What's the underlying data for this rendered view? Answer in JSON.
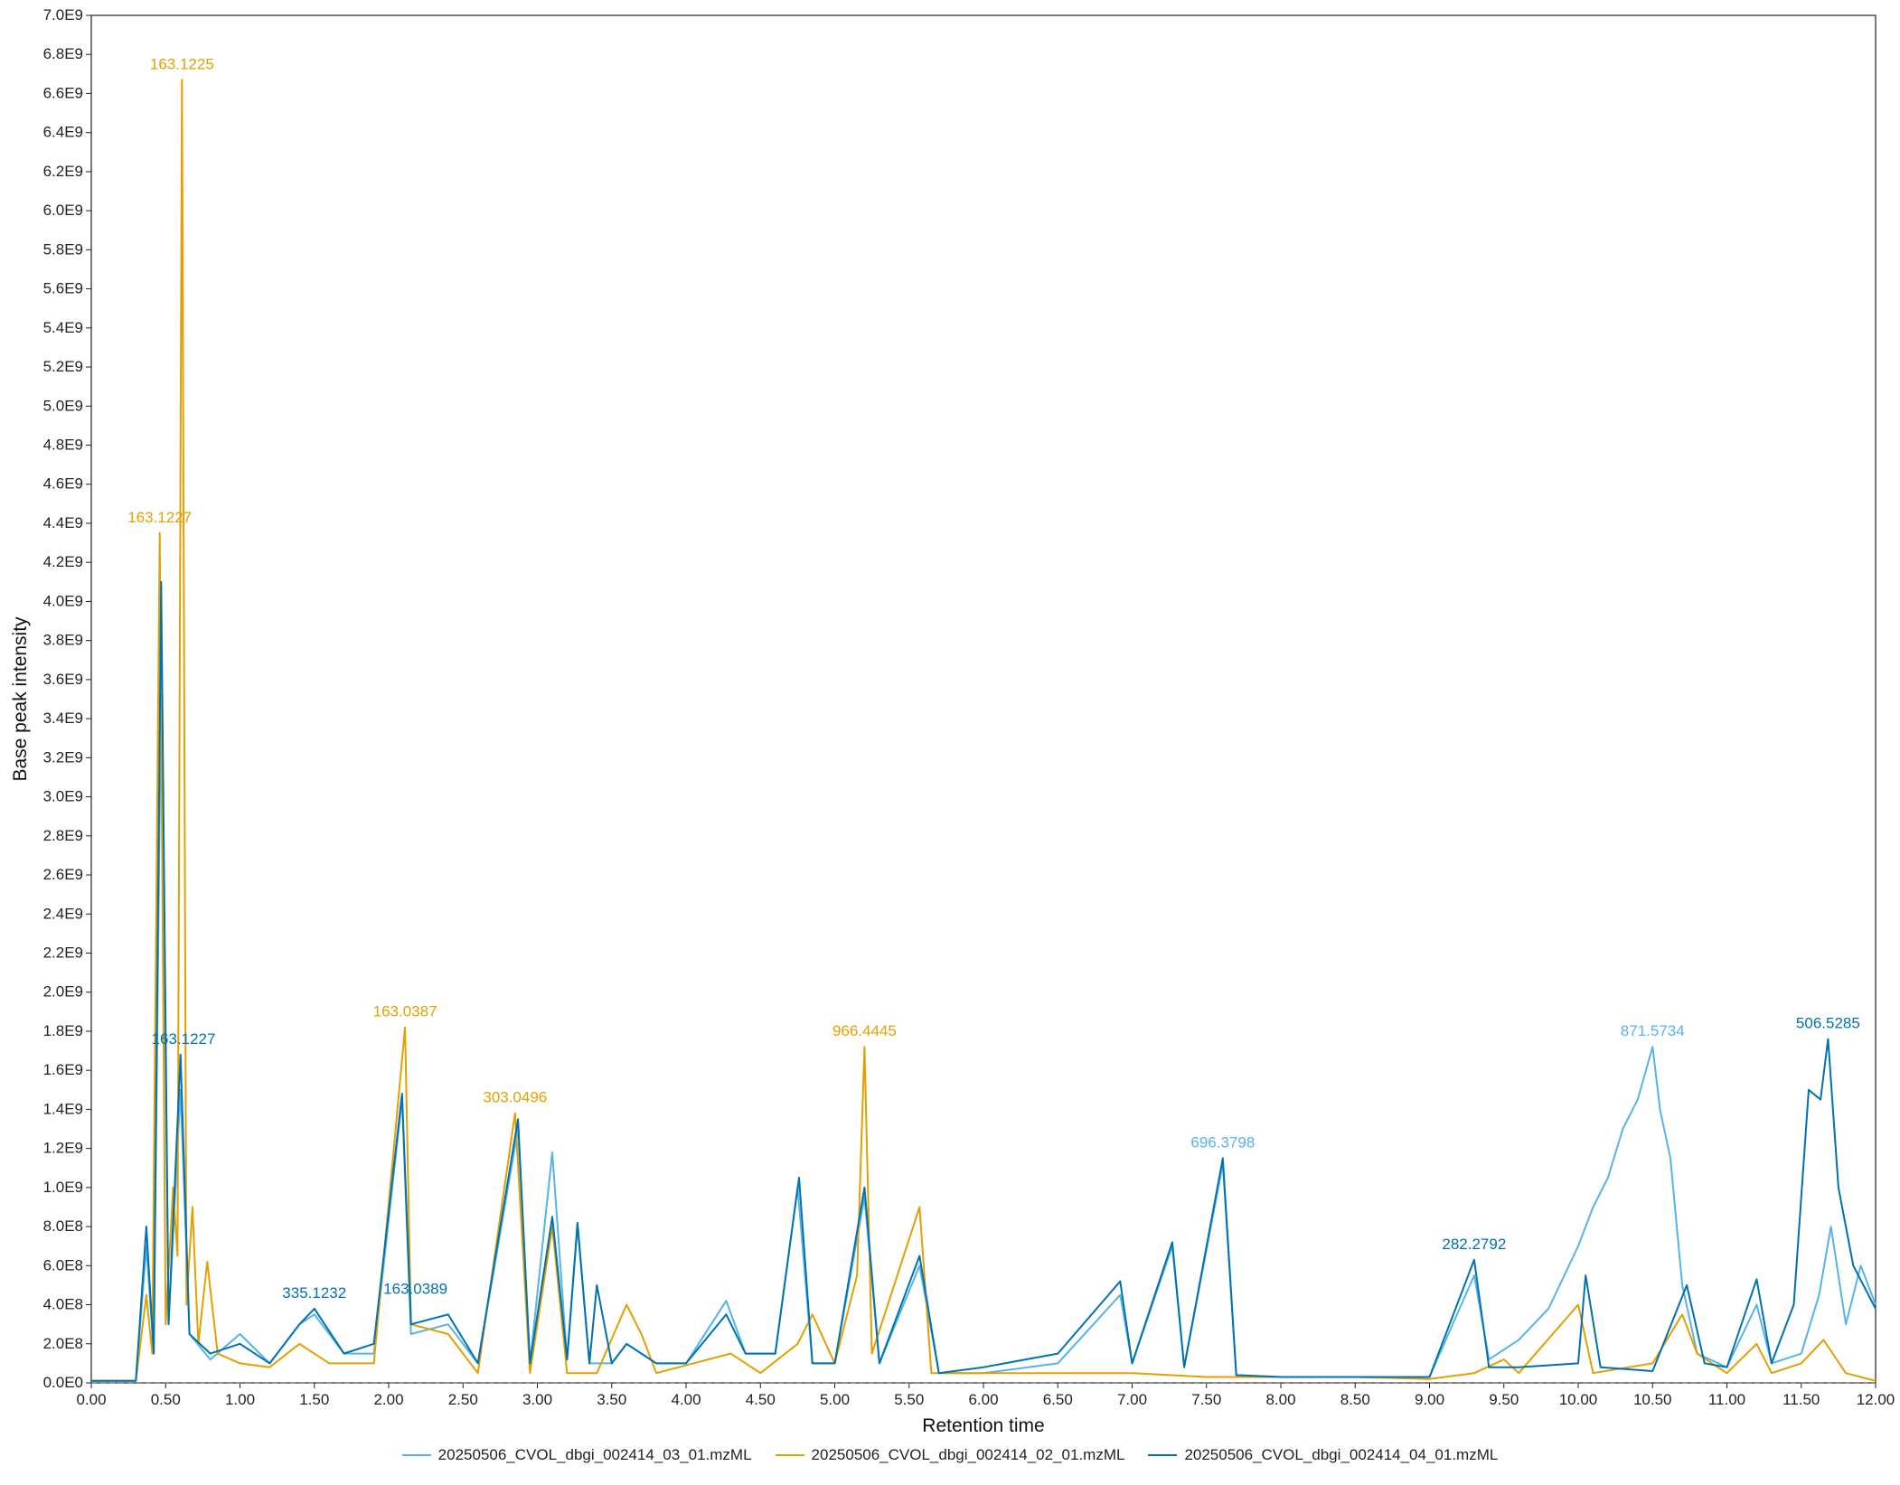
{
  "chart_data": {
    "type": "line",
    "title": "",
    "xlabel": "Retention time",
    "ylabel": "Base peak intensity",
    "xlim": [
      0,
      12
    ],
    "ylim": [
      0,
      7000000000
    ],
    "x_ticks": [
      "0.00",
      "0.50",
      "1.00",
      "1.50",
      "2.00",
      "2.50",
      "3.00",
      "3.50",
      "4.00",
      "4.50",
      "5.00",
      "5.50",
      "6.00",
      "6.50",
      "7.00",
      "7.50",
      "8.00",
      "8.50",
      "9.00",
      "9.50",
      "10.00",
      "10.50",
      "11.00",
      "11.50",
      "12.00"
    ],
    "y_ticks": [
      "0.0E0",
      "2.0E8",
      "4.0E8",
      "6.0E8",
      "8.0E8",
      "1.0E9",
      "1.2E9",
      "1.4E9",
      "1.6E9",
      "1.8E9",
      "2.0E9",
      "2.2E9",
      "2.4E9",
      "2.6E9",
      "2.8E9",
      "3.0E9",
      "3.2E9",
      "3.4E9",
      "3.6E9",
      "3.8E9",
      "4.0E9",
      "4.2E9",
      "4.4E9",
      "4.6E9",
      "4.8E9",
      "5.0E9",
      "5.2E9",
      "5.4E9",
      "5.6E9",
      "5.8E9",
      "6.0E9",
      "6.2E9",
      "6.4E9",
      "6.6E9",
      "6.8E9",
      "7.0E9"
    ],
    "grid": false,
    "legend_position": "bottom",
    "series": [
      {
        "name": "20250506_CVOL_dbgi_002414_03_01.mzML",
        "color": "#56b4e9",
        "points": [
          [
            0,
            10000000.0
          ],
          [
            0.3,
            10000000.0
          ],
          [
            0.37,
            700000000.0
          ],
          [
            0.42,
            150000000.0
          ],
          [
            0.47,
            3600000000.0
          ],
          [
            0.52,
            300000000.0
          ],
          [
            0.6,
            1500000000.0
          ],
          [
            0.66,
            250000000.0
          ],
          [
            0.8,
            120000000.0
          ],
          [
            1.0,
            250000000.0
          ],
          [
            1.2,
            100000000.0
          ],
          [
            1.4,
            300000000.0
          ],
          [
            1.5,
            350000000.0
          ],
          [
            1.7,
            150000000.0
          ],
          [
            1.9,
            150000000.0
          ],
          [
            2.09,
            1450000000.0
          ],
          [
            2.15,
            250000000.0
          ],
          [
            2.4,
            300000000.0
          ],
          [
            2.6,
            100000000.0
          ],
          [
            2.87,
            1300000000.0
          ],
          [
            2.95,
            100000000.0
          ],
          [
            3.1,
            1180000000.0
          ],
          [
            3.2,
            120000000.0
          ],
          [
            3.27,
            800000000.0
          ],
          [
            3.35,
            100000000.0
          ],
          [
            3.5,
            100000000.0
          ],
          [
            3.6,
            200000000.0
          ],
          [
            3.8,
            100000000.0
          ],
          [
            4.0,
            100000000.0
          ],
          [
            4.27,
            420000000.0
          ],
          [
            4.4,
            150000000.0
          ],
          [
            4.6,
            150000000.0
          ],
          [
            4.75,
            1000000000.0
          ],
          [
            4.85,
            100000000.0
          ],
          [
            5.0,
            100000000.0
          ],
          [
            5.2,
            950000000.0
          ],
          [
            5.3,
            100000000.0
          ],
          [
            5.57,
            600000000.0
          ],
          [
            5.7,
            50000000.0
          ],
          [
            6.0,
            50000000.0
          ],
          [
            6.5,
            100000000.0
          ],
          [
            6.92,
            450000000.0
          ],
          [
            7.0,
            100000000.0
          ],
          [
            7.27,
            700000000.0
          ],
          [
            7.35,
            80000000.0
          ],
          [
            7.61,
            1120000000.0
          ],
          [
            7.7,
            40000000.0
          ],
          [
            8.0,
            30000000.0
          ],
          [
            8.5,
            30000000.0
          ],
          [
            9.0,
            30000000.0
          ],
          [
            9.3,
            550000000.0
          ],
          [
            9.4,
            120000000.0
          ],
          [
            9.6,
            220000000.0
          ],
          [
            9.8,
            380000000.0
          ],
          [
            10.0,
            700000000.0
          ],
          [
            10.1,
            900000000.0
          ],
          [
            10.2,
            1050000000.0
          ],
          [
            10.3,
            1300000000.0
          ],
          [
            10.4,
            1450000000.0
          ],
          [
            10.5,
            1720000000.0
          ],
          [
            10.55,
            1400000000.0
          ],
          [
            10.62,
            1150000000.0
          ],
          [
            10.7,
            500000000.0
          ],
          [
            10.8,
            150000000.0
          ],
          [
            11.0,
            80000000.0
          ],
          [
            11.2,
            400000000.0
          ],
          [
            11.3,
            100000000.0
          ],
          [
            11.5,
            150000000.0
          ],
          [
            11.62,
            450000000.0
          ],
          [
            11.7,
            800000000.0
          ],
          [
            11.8,
            300000000.0
          ],
          [
            11.9,
            600000000.0
          ],
          [
            12.0,
            400000000.0
          ]
        ]
      },
      {
        "name": "20250506_CVOL_dbgi_002414_02_01.mzML",
        "color": "#e69f00",
        "points": [
          [
            0,
            10000000.0
          ],
          [
            0.3,
            10000000.0
          ],
          [
            0.37,
            450000000.0
          ],
          [
            0.41,
            150000000.0
          ],
          [
            0.46,
            4350000000.0
          ],
          [
            0.5,
            300000000.0
          ],
          [
            0.55,
            1000000000.0
          ],
          [
            0.58,
            650000000.0
          ],
          [
            0.61,
            6670000000.0
          ],
          [
            0.64,
            400000000.0
          ],
          [
            0.68,
            900000000.0
          ],
          [
            0.72,
            200000000.0
          ],
          [
            0.78,
            620000000.0
          ],
          [
            0.85,
            150000000.0
          ],
          [
            1.0,
            100000000.0
          ],
          [
            1.2,
            80000000.0
          ],
          [
            1.4,
            200000000.0
          ],
          [
            1.6,
            100000000.0
          ],
          [
            1.9,
            100000000.0
          ],
          [
            2.11,
            1820000000.0
          ],
          [
            2.15,
            300000000.0
          ],
          [
            2.4,
            250000000.0
          ],
          [
            2.6,
            50000000.0
          ],
          [
            2.85,
            1380000000.0
          ],
          [
            2.95,
            50000000.0
          ],
          [
            3.1,
            800000000.0
          ],
          [
            3.2,
            50000000.0
          ],
          [
            3.4,
            50000000.0
          ],
          [
            3.6,
            400000000.0
          ],
          [
            3.7,
            250000000.0
          ],
          [
            3.8,
            50000000.0
          ],
          [
            4.3,
            150000000.0
          ],
          [
            4.5,
            50000000.0
          ],
          [
            4.75,
            200000000.0
          ],
          [
            4.85,
            350000000.0
          ],
          [
            5.0,
            100000000.0
          ],
          [
            5.15,
            550000000.0
          ],
          [
            5.2,
            1720000000.0
          ],
          [
            5.25,
            150000000.0
          ],
          [
            5.57,
            900000000.0
          ],
          [
            5.65,
            50000000.0
          ],
          [
            6.0,
            50000000.0
          ],
          [
            7.0,
            50000000.0
          ],
          [
            7.5,
            30000000.0
          ],
          [
            8.0,
            30000000.0
          ],
          [
            8.5,
            30000000.0
          ],
          [
            9.0,
            20000000.0
          ],
          [
            9.3,
            50000000.0
          ],
          [
            9.5,
            120000000.0
          ],
          [
            9.6,
            50000000.0
          ],
          [
            10.0,
            400000000.0
          ],
          [
            10.1,
            50000000.0
          ],
          [
            10.5,
            100000000.0
          ],
          [
            10.7,
            350000000.0
          ],
          [
            10.8,
            150000000.0
          ],
          [
            11.0,
            50000000.0
          ],
          [
            11.2,
            200000000.0
          ],
          [
            11.3,
            50000000.0
          ],
          [
            11.5,
            100000000.0
          ],
          [
            11.65,
            220000000.0
          ],
          [
            11.8,
            50000000.0
          ],
          [
            12.0,
            10000000.0
          ]
        ]
      },
      {
        "name": "20250506_CVOL_dbgi_002414_04_01.mzML",
        "color": "#0072b2",
        "points": [
          [
            0,
            10000000.0
          ],
          [
            0.3,
            10000000.0
          ],
          [
            0.37,
            800000000.0
          ],
          [
            0.42,
            150000000.0
          ],
          [
            0.47,
            4100000000.0
          ],
          [
            0.52,
            300000000.0
          ],
          [
            0.6,
            1680000000.0
          ],
          [
            0.66,
            250000000.0
          ],
          [
            0.8,
            150000000.0
          ],
          [
            1.0,
            200000000.0
          ],
          [
            1.2,
            100000000.0
          ],
          [
            1.4,
            300000000.0
          ],
          [
            1.5,
            380000000.0
          ],
          [
            1.7,
            150000000.0
          ],
          [
            1.9,
            200000000.0
          ],
          [
            2.09,
            1480000000.0
          ],
          [
            2.15,
            300000000.0
          ],
          [
            2.4,
            350000000.0
          ],
          [
            2.6,
            100000000.0
          ],
          [
            2.87,
            1350000000.0
          ],
          [
            2.95,
            100000000.0
          ],
          [
            3.1,
            850000000.0
          ],
          [
            3.2,
            120000000.0
          ],
          [
            3.27,
            820000000.0
          ],
          [
            3.35,
            100000000.0
          ],
          [
            3.4,
            500000000.0
          ],
          [
            3.5,
            100000000.0
          ],
          [
            3.6,
            200000000.0
          ],
          [
            3.8,
            100000000.0
          ],
          [
            4.0,
            100000000.0
          ],
          [
            4.27,
            350000000.0
          ],
          [
            4.4,
            150000000.0
          ],
          [
            4.6,
            150000000.0
          ],
          [
            4.76,
            1050000000.0
          ],
          [
            4.85,
            100000000.0
          ],
          [
            5.0,
            100000000.0
          ],
          [
            5.2,
            1000000000.0
          ],
          [
            5.3,
            100000000.0
          ],
          [
            5.57,
            650000000.0
          ],
          [
            5.7,
            50000000.0
          ],
          [
            6.0,
            80000000.0
          ],
          [
            6.5,
            150000000.0
          ],
          [
            6.92,
            520000000.0
          ],
          [
            7.0,
            100000000.0
          ],
          [
            7.27,
            720000000.0
          ],
          [
            7.35,
            80000000.0
          ],
          [
            7.61,
            1150000000.0
          ],
          [
            7.7,
            40000000.0
          ],
          [
            8.0,
            30000000.0
          ],
          [
            8.5,
            30000000.0
          ],
          [
            9.0,
            30000000.0
          ],
          [
            9.3,
            630000000.0
          ],
          [
            9.4,
            80000000.0
          ],
          [
            9.6,
            80000000.0
          ],
          [
            10.0,
            100000000.0
          ],
          [
            10.05,
            550000000.0
          ],
          [
            10.15,
            80000000.0
          ],
          [
            10.5,
            60000000.0
          ],
          [
            10.73,
            500000000.0
          ],
          [
            10.85,
            100000000.0
          ],
          [
            11.0,
            80000000.0
          ],
          [
            11.2,
            530000000.0
          ],
          [
            11.3,
            100000000.0
          ],
          [
            11.45,
            400000000.0
          ],
          [
            11.55,
            1500000000.0
          ],
          [
            11.63,
            1450000000.0
          ],
          [
            11.68,
            1760000000.0
          ],
          [
            11.75,
            1000000000.0
          ],
          [
            11.85,
            600000000.0
          ],
          [
            12.0,
            380000000.0
          ]
        ]
      }
    ],
    "annotations": [
      {
        "text": "163.1225",
        "x": 0.61,
        "y": 6670000000.0,
        "series": 1
      },
      {
        "text": "163.1227",
        "x": 0.46,
        "y": 4350000000.0,
        "series": 1
      },
      {
        "text": "163.1227",
        "x": 0.62,
        "y": 1680000000.0,
        "series": 2
      },
      {
        "text": "335.1232",
        "x": 1.5,
        "y": 380000000.0,
        "series": 2
      },
      {
        "text": "163.0389",
        "x": 2.18,
        "y": 400000000.0,
        "series": 2
      },
      {
        "text": "163.0387",
        "x": 2.11,
        "y": 1820000000.0,
        "series": 1
      },
      {
        "text": "303.0496",
        "x": 2.85,
        "y": 1380000000.0,
        "series": 1
      },
      {
        "text": "966.4445",
        "x": 5.2,
        "y": 1720000000.0,
        "series": 1
      },
      {
        "text": "696.3798",
        "x": 7.61,
        "y": 1150000000.0,
        "series": 0
      },
      {
        "text": "282.2792",
        "x": 9.3,
        "y": 630000000.0,
        "series": 2
      },
      {
        "text": "871.5734",
        "x": 10.5,
        "y": 1720000000.0,
        "series": 0
      },
      {
        "text": "506.5285",
        "x": 11.68,
        "y": 1760000000.0,
        "series": 2
      }
    ]
  }
}
